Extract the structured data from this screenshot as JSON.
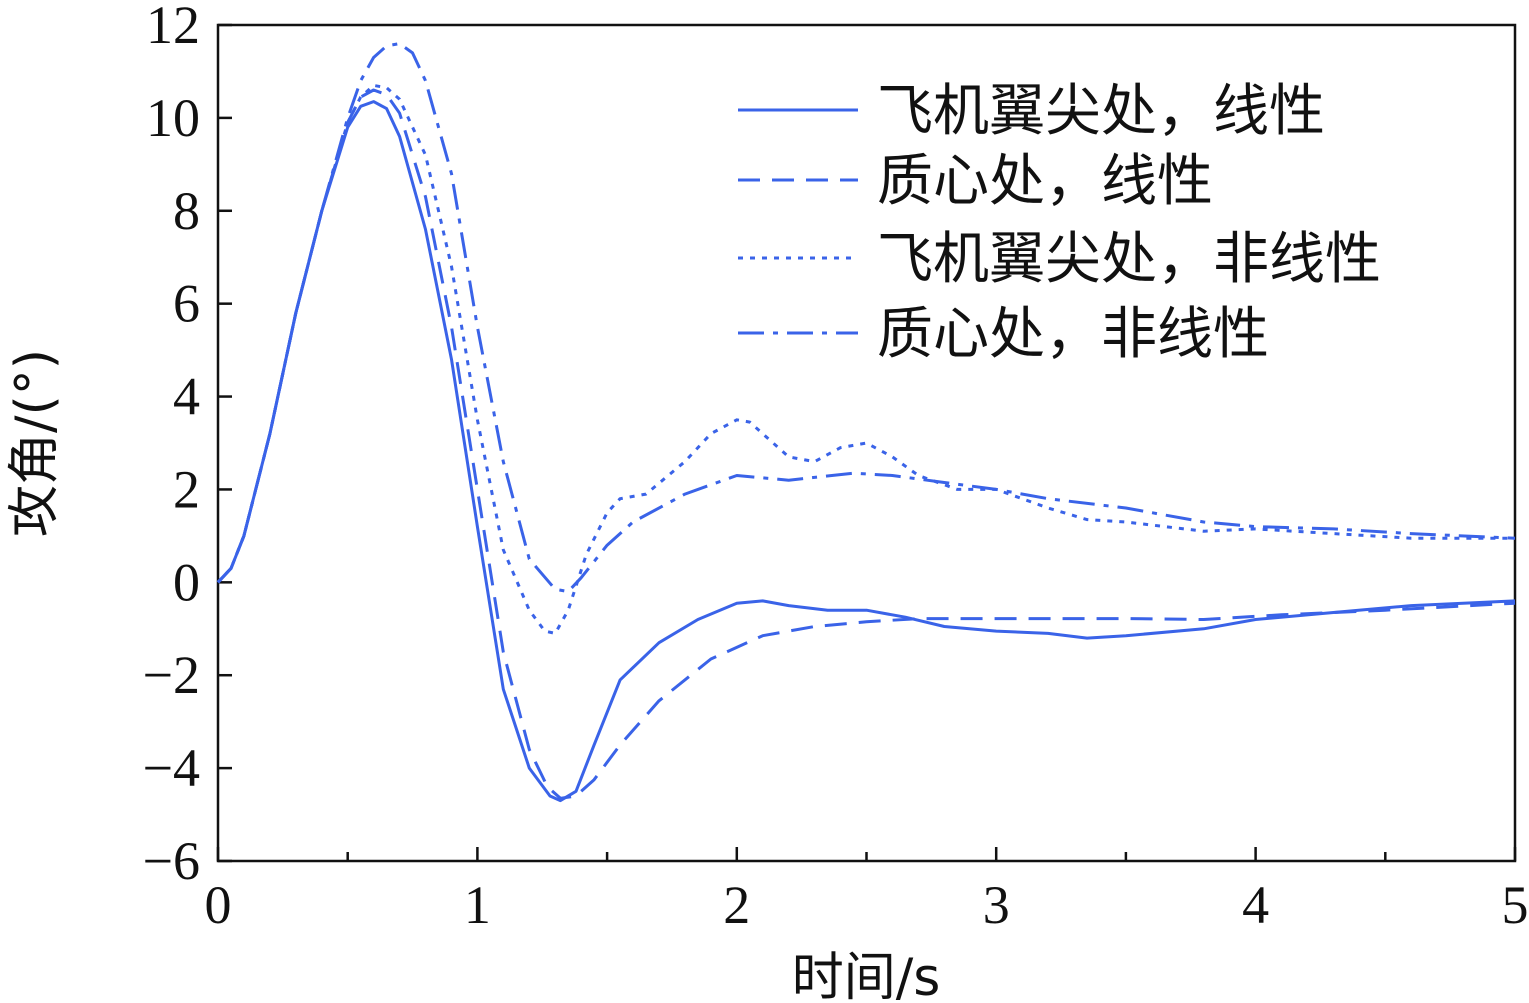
{
  "chart_data": {
    "type": "line",
    "title": "",
    "xlabel": "时间/s",
    "ylabel": "攻角/(°)",
    "xlim": [
      0,
      5
    ],
    "ylim": [
      -6,
      12
    ],
    "xticks": [
      0,
      1,
      2,
      3,
      4,
      5
    ],
    "yticks": [
      -6,
      -4,
      -2,
      0,
      2,
      4,
      6,
      8,
      10,
      12
    ],
    "xtick_labels": [
      "0",
      "1",
      "2",
      "3",
      "4",
      "5"
    ],
    "ytick_labels": [
      "−6",
      "−4",
      "−2",
      "0",
      "2",
      "4",
      "6",
      "8",
      "10",
      "12"
    ],
    "grid": false,
    "legend_position": "top-right",
    "color": "#3a63e8",
    "series": [
      {
        "name": "飞机翼尖处，线性",
        "dash": "solid",
        "x": [
          0,
          0.05,
          0.1,
          0.2,
          0.3,
          0.4,
          0.5,
          0.55,
          0.6,
          0.65,
          0.7,
          0.8,
          0.9,
          1.0,
          1.1,
          1.2,
          1.28,
          1.32,
          1.38,
          1.45,
          1.55,
          1.7,
          1.85,
          2.0,
          2.1,
          2.2,
          2.35,
          2.5,
          2.65,
          2.8,
          3.0,
          3.2,
          3.35,
          3.5,
          3.8,
          4.0,
          4.3,
          4.6,
          5.0
        ],
        "y": [
          0,
          0.3,
          1.0,
          3.2,
          5.8,
          8.0,
          9.8,
          10.25,
          10.35,
          10.2,
          9.6,
          7.6,
          4.8,
          1.2,
          -2.3,
          -4.0,
          -4.6,
          -4.7,
          -4.5,
          -3.5,
          -2.1,
          -1.3,
          -0.8,
          -0.45,
          -0.4,
          -0.5,
          -0.6,
          -0.6,
          -0.75,
          -0.95,
          -1.05,
          -1.1,
          -1.2,
          -1.15,
          -1.0,
          -0.8,
          -0.65,
          -0.5,
          -0.4
        ]
      },
      {
        "name": "质心处，线性",
        "dash": "dashed",
        "x": [
          0,
          0.05,
          0.1,
          0.2,
          0.3,
          0.4,
          0.5,
          0.55,
          0.6,
          0.65,
          0.7,
          0.8,
          0.9,
          1.0,
          1.1,
          1.2,
          1.27,
          1.32,
          1.38,
          1.45,
          1.55,
          1.7,
          1.9,
          2.1,
          2.3,
          2.5,
          2.7,
          2.9,
          3.2,
          3.5,
          3.8,
          4.1,
          4.5,
          5.0
        ],
        "y": [
          0,
          0.3,
          1.0,
          3.2,
          5.8,
          8.0,
          9.9,
          10.45,
          10.6,
          10.5,
          10.1,
          8.3,
          5.5,
          2.0,
          -1.5,
          -3.6,
          -4.4,
          -4.65,
          -4.6,
          -4.25,
          -3.5,
          -2.55,
          -1.65,
          -1.15,
          -0.95,
          -0.85,
          -0.78,
          -0.78,
          -0.78,
          -0.78,
          -0.8,
          -0.7,
          -0.6,
          -0.45
        ]
      },
      {
        "name": "飞机翼尖处，非线性",
        "dash": "dotted",
        "x": [
          0,
          0.05,
          0.1,
          0.2,
          0.3,
          0.4,
          0.5,
          0.55,
          0.6,
          0.65,
          0.7,
          0.8,
          0.9,
          1.0,
          1.1,
          1.2,
          1.26,
          1.3,
          1.35,
          1.42,
          1.5,
          1.55,
          1.65,
          1.8,
          1.9,
          2.0,
          2.05,
          2.1,
          2.2,
          2.3,
          2.4,
          2.5,
          2.6,
          2.7,
          2.85,
          3.0,
          3.2,
          3.35,
          3.5,
          3.65,
          3.8,
          4.0,
          4.3,
          4.6,
          5.0
        ],
        "y": [
          0,
          0.3,
          1.0,
          3.2,
          5.8,
          8.0,
          9.9,
          10.45,
          10.7,
          10.65,
          10.4,
          9.2,
          6.8,
          3.5,
          0.7,
          -0.6,
          -1.05,
          -1.1,
          -0.6,
          0.6,
          1.5,
          1.8,
          1.9,
          2.6,
          3.2,
          3.5,
          3.45,
          3.2,
          2.7,
          2.6,
          2.9,
          3.0,
          2.7,
          2.3,
          2.0,
          2.0,
          1.6,
          1.35,
          1.3,
          1.2,
          1.1,
          1.15,
          1.05,
          0.95,
          0.95
        ]
      },
      {
        "name": "质心处，非线性",
        "dash": "dashdot",
        "x": [
          0,
          0.05,
          0.1,
          0.2,
          0.3,
          0.4,
          0.5,
          0.55,
          0.6,
          0.65,
          0.7,
          0.75,
          0.8,
          0.9,
          1.0,
          1.1,
          1.2,
          1.3,
          1.35,
          1.4,
          1.5,
          1.6,
          1.8,
          2.0,
          2.2,
          2.45,
          2.6,
          2.8,
          3.0,
          3.2,
          3.5,
          3.8,
          4.0,
          4.3,
          4.6,
          5.0
        ],
        "y": [
          0,
          0.3,
          1.0,
          3.2,
          5.8,
          8.0,
          10.0,
          10.8,
          11.3,
          11.55,
          11.6,
          11.4,
          10.8,
          8.8,
          5.5,
          2.6,
          0.5,
          -0.15,
          -0.2,
          0.1,
          0.8,
          1.3,
          1.9,
          2.3,
          2.2,
          2.35,
          2.3,
          2.15,
          2.0,
          1.8,
          1.6,
          1.3,
          1.2,
          1.15,
          1.05,
          0.95
        ]
      }
    ]
  }
}
